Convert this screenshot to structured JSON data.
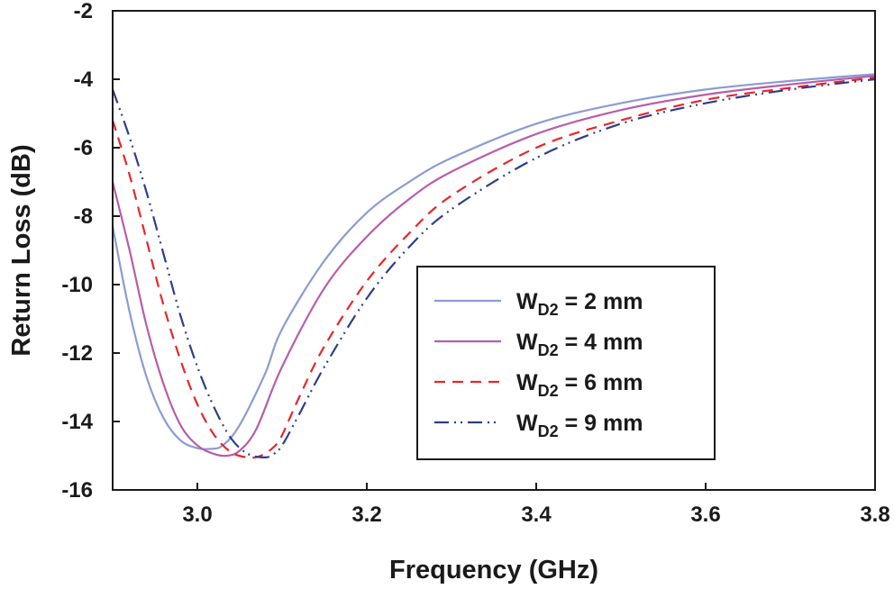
{
  "chart_data": {
    "type": "line",
    "title": "",
    "xlabel": "Frequency (GHz)",
    "ylabel": "Return Loss (dB)",
    "xlim": [
      2.9,
      3.8
    ],
    "ylim": [
      -16,
      -2
    ],
    "x_ticks": [
      3.0,
      3.2,
      3.4,
      3.6,
      3.8
    ],
    "x_tick_labels": [
      "3.0",
      "3.2",
      "3.4",
      "3.6",
      "3.8"
    ],
    "y_ticks": [
      -16,
      -14,
      -12,
      -10,
      -8,
      -6,
      -4,
      -2
    ],
    "y_tick_labels": [
      "-16",
      "-14",
      "-12",
      "-10",
      "-8",
      "-6",
      "-4",
      "-2"
    ],
    "grid": false,
    "legend_position": "center-right",
    "series": [
      {
        "name": "W_D2 = 2 mm",
        "label_main": "W",
        "label_sub": "D2",
        "label_rest": " = 2 mm",
        "color": "#8c9bd2",
        "style": "solid",
        "x": [
          2.9,
          2.92,
          2.94,
          2.96,
          2.98,
          3.0,
          3.015,
          3.03,
          3.05,
          3.08,
          3.1,
          3.15,
          3.2,
          3.25,
          3.3,
          3.4,
          3.5,
          3.6,
          3.7,
          3.8
        ],
        "y": [
          -8.3,
          -10.8,
          -12.7,
          -13.9,
          -14.55,
          -14.78,
          -14.8,
          -14.7,
          -14.1,
          -12.6,
          -11.3,
          -9.3,
          -7.9,
          -7.0,
          -6.3,
          -5.3,
          -4.7,
          -4.3,
          -4.05,
          -3.85
        ]
      },
      {
        "name": "W_D2 = 4 mm",
        "label_main": "W",
        "label_sub": "D2",
        "label_rest": " = 4 mm",
        "color": "#b85cab",
        "style": "solid",
        "x": [
          2.9,
          2.92,
          2.94,
          2.96,
          2.98,
          3.0,
          3.02,
          3.035,
          3.05,
          3.07,
          3.1,
          3.15,
          3.2,
          3.25,
          3.3,
          3.4,
          3.5,
          3.6,
          3.7,
          3.8
        ],
        "y": [
          -7.0,
          -9.0,
          -11.2,
          -12.9,
          -14.1,
          -14.7,
          -14.95,
          -15.0,
          -14.85,
          -14.2,
          -12.4,
          -10.1,
          -8.6,
          -7.5,
          -6.7,
          -5.6,
          -4.9,
          -4.45,
          -4.15,
          -3.9
        ]
      },
      {
        "name": "W_D2 = 6 mm",
        "label_main": "W",
        "label_sub": "D2",
        "label_rest": " = 6 mm",
        "color": "#e8262b",
        "style": "dashed",
        "x": [
          2.9,
          2.92,
          2.94,
          2.96,
          2.98,
          3.0,
          3.02,
          3.04,
          3.06,
          3.075,
          3.09,
          3.1,
          3.12,
          3.15,
          3.2,
          3.25,
          3.3,
          3.4,
          3.5,
          3.6,
          3.7,
          3.8
        ],
        "y": [
          -5.2,
          -6.8,
          -8.7,
          -10.6,
          -12.2,
          -13.5,
          -14.4,
          -14.9,
          -15.05,
          -15.0,
          -14.75,
          -14.4,
          -13.3,
          -11.8,
          -9.9,
          -8.5,
          -7.4,
          -6.0,
          -5.2,
          -4.6,
          -4.25,
          -3.95
        ]
      },
      {
        "name": "W_D2 = 9 mm",
        "label_main": "W",
        "label_sub": "D2",
        "label_rest": " = 9 mm",
        "color": "#2e3d8c",
        "style": "dashdotdot",
        "x": [
          2.9,
          2.92,
          2.94,
          2.96,
          2.98,
          3.0,
          3.02,
          3.04,
          3.06,
          3.08,
          3.09,
          3.1,
          3.12,
          3.15,
          3.2,
          3.25,
          3.3,
          3.4,
          3.5,
          3.6,
          3.7,
          3.8
        ],
        "y": [
          -4.3,
          -5.7,
          -7.3,
          -9.1,
          -10.9,
          -12.4,
          -13.6,
          -14.5,
          -14.95,
          -15.05,
          -14.95,
          -14.7,
          -13.8,
          -12.4,
          -10.4,
          -8.9,
          -7.8,
          -6.3,
          -5.3,
          -4.7,
          -4.3,
          -4.0
        ]
      }
    ]
  }
}
